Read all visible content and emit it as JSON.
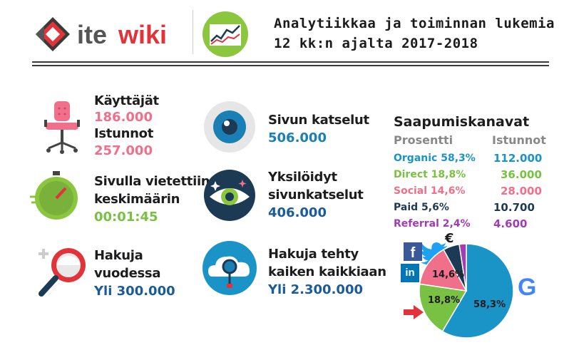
{
  "header": {
    "logo_ite": "ite",
    "logo_wiki": "wiki",
    "title_line1": "Analytiikkaa ja toiminnan lukemia",
    "title_line2": "12 kk:n ajalta 2017-2018"
  },
  "stats": {
    "users_label": "Käyttäjät",
    "users_value": "186.000",
    "sessions_label": "Istunnot",
    "sessions_value": "257.000",
    "time_label_1": "Sivulla vietettiin",
    "time_label_2": "keskimäärin",
    "time_value": "00:01:45",
    "searches_label_1": "Hakuja",
    "searches_label_2": "vuodessa",
    "searches_value": "Yli 300.000",
    "pageviews_label": "Sivun katselut",
    "pageviews_value": "506.000",
    "unique_label_1": "Yksilöidyt",
    "unique_label_2": "sivunkatselut",
    "unique_value": "406.000",
    "alltime_label_1": "Hakuja tehty",
    "alltime_label_2": "kaiken kaikkiaan",
    "alltime_value": "Yli 2.300.000"
  },
  "channels": {
    "title": "Saapumiskanavat",
    "col_percent": "Prosentti",
    "col_sessions": "Istunnot",
    "rows": [
      {
        "label": "Organic 58,3%",
        "sessions": "112.000",
        "color": "#1a94c7"
      },
      {
        "label": "Direct 18,8%",
        "sessions": "36.000",
        "color": "#79c142"
      },
      {
        "label": "Social 14,6%",
        "sessions": "28.000",
        "color": "#f06f8a"
      },
      {
        "label": "Paid 5,6%",
        "sessions": "10.700",
        "color": "#1d3a55"
      },
      {
        "label": "Referral 2,4%",
        "sessions": "4.600",
        "color": "#a23cb6"
      }
    ]
  },
  "pie": {
    "labels": [
      "58,3%",
      "18,8%",
      "14,6%"
    ],
    "slices": [
      {
        "name": "Organic",
        "value": 58.3,
        "color": "#1a94c7"
      },
      {
        "name": "Direct",
        "value": 18.8,
        "color": "#79c142"
      },
      {
        "name": "Social",
        "value": 14.6,
        "color": "#f06f8a"
      },
      {
        "name": "Paid",
        "value": 5.6,
        "color": "#1d3a55"
      },
      {
        "name": "Referral",
        "value": 2.4,
        "color": "#a23cb6"
      }
    ],
    "euro_symbol": "€",
    "google_letter": "G",
    "facebook_letter": "f",
    "linkedin_letters": "in"
  }
}
